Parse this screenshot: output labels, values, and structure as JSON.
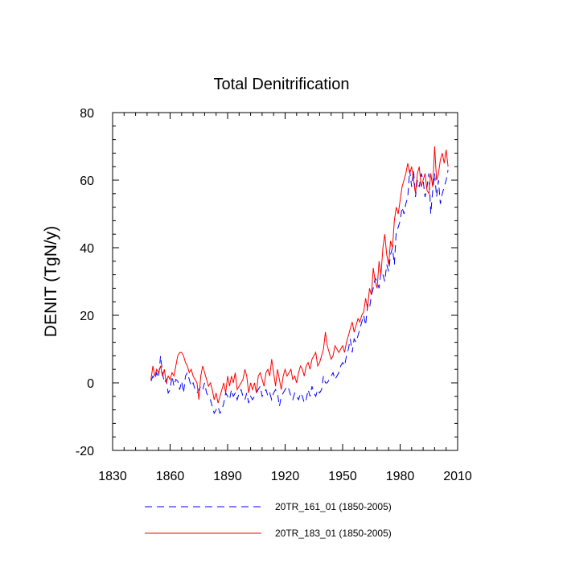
{
  "chart_data": {
    "type": "line",
    "title": "Total Denitrification",
    "xlabel": "",
    "ylabel": "DENIT  (TgN/y)",
    "xlim": [
      1830,
      2010
    ],
    "ylim": [
      -20,
      80
    ],
    "xticks": [
      1830,
      1860,
      1890,
      1920,
      1950,
      1980,
      2010
    ],
    "yticks": [
      -20,
      0,
      20,
      40,
      60,
      80
    ],
    "grid": false,
    "legend_position": "bottom",
    "series": [
      {
        "name": "20TR_161_01 (1850-2005)",
        "color": "#0000ff",
        "style": "dashed",
        "x": [
          1850,
          1851,
          1852,
          1853,
          1854,
          1855,
          1856,
          1857,
          1858,
          1859,
          1860,
          1861,
          1862,
          1863,
          1864,
          1865,
          1866,
          1867,
          1868,
          1869,
          1870,
          1871,
          1872,
          1873,
          1874,
          1875,
          1876,
          1877,
          1878,
          1879,
          1880,
          1881,
          1882,
          1883,
          1884,
          1885,
          1886,
          1887,
          1888,
          1889,
          1890,
          1891,
          1892,
          1893,
          1894,
          1895,
          1896,
          1897,
          1898,
          1899,
          1900,
          1901,
          1902,
          1903,
          1904,
          1905,
          1906,
          1907,
          1908,
          1909,
          1910,
          1911,
          1912,
          1913,
          1914,
          1915,
          1916,
          1917,
          1918,
          1919,
          1920,
          1921,
          1922,
          1923,
          1924,
          1925,
          1926,
          1927,
          1928,
          1929,
          1930,
          1931,
          1932,
          1933,
          1934,
          1935,
          1936,
          1937,
          1938,
          1939,
          1940,
          1941,
          1942,
          1943,
          1944,
          1945,
          1946,
          1947,
          1948,
          1949,
          1950,
          1951,
          1952,
          1953,
          1954,
          1955,
          1956,
          1957,
          1958,
          1959,
          1960,
          1961,
          1962,
          1963,
          1964,
          1965,
          1966,
          1967,
          1968,
          1969,
          1970,
          1971,
          1972,
          1973,
          1974,
          1975,
          1976,
          1977,
          1978,
          1979,
          1980,
          1981,
          1982,
          1983,
          1984,
          1985,
          1986,
          1987,
          1988,
          1989,
          1990,
          1991,
          1992,
          1993,
          1994,
          1995,
          1996,
          1997,
          1998,
          1999,
          2000,
          2001,
          2002,
          2003,
          2004,
          2005
        ],
        "values": [
          0.5,
          2,
          1,
          3,
          1.5,
          8,
          3,
          0,
          1,
          -3,
          -2,
          2,
          -1,
          1,
          0.5,
          -2,
          0.5,
          -3,
          2,
          3,
          1,
          -1,
          0,
          -2,
          -3,
          -2,
          -1,
          -2,
          0,
          -3,
          -4,
          -5,
          -7,
          -9,
          -8,
          -7,
          -9,
          -8,
          -6,
          -3,
          -4,
          -5,
          -2,
          -4,
          -3,
          -5,
          -3,
          -2,
          -4,
          -5,
          -3,
          -6,
          -4,
          -5,
          -4,
          -3,
          -2,
          -1,
          -4,
          -3,
          -2,
          -4,
          -3,
          -5,
          -3,
          -2,
          -3,
          -7,
          -4,
          -3,
          -2,
          -1,
          -2,
          -4,
          -5,
          -3,
          -4,
          -5,
          -3,
          -4,
          -6,
          -5,
          -2,
          -4,
          -1,
          -3,
          -4,
          -2,
          -3,
          -2,
          2,
          0,
          0,
          1,
          2,
          3,
          1,
          2,
          3,
          5,
          6,
          5,
          8,
          10,
          13,
          9,
          13,
          12,
          14,
          16,
          18,
          20,
          17,
          23,
          22,
          26,
          28,
          31,
          30,
          28,
          33,
          32,
          30,
          35,
          33,
          38,
          40,
          35,
          45,
          46,
          48,
          52,
          50,
          53,
          55,
          63,
          58,
          63,
          55,
          60,
          58,
          62,
          60,
          55,
          58,
          62,
          50,
          57,
          62,
          55,
          60,
          53,
          56,
          58,
          60,
          63
        ]
      },
      {
        "name": "20TR_183_01 (1850-2005)",
        "color": "#ff0000",
        "style": "solid",
        "x": [
          1850,
          1851,
          1852,
          1853,
          1854,
          1855,
          1856,
          1857,
          1858,
          1859,
          1860,
          1861,
          1862,
          1863,
          1864,
          1865,
          1866,
          1867,
          1868,
          1869,
          1870,
          1871,
          1872,
          1873,
          1874,
          1875,
          1876,
          1877,
          1878,
          1879,
          1880,
          1881,
          1882,
          1883,
          1884,
          1885,
          1886,
          1887,
          1888,
          1889,
          1890,
          1891,
          1892,
          1893,
          1894,
          1895,
          1896,
          1897,
          1898,
          1899,
          1900,
          1901,
          1902,
          1903,
          1904,
          1905,
          1906,
          1907,
          1908,
          1909,
          1910,
          1911,
          1912,
          1913,
          1914,
          1915,
          1916,
          1917,
          1918,
          1919,
          1920,
          1921,
          1922,
          1923,
          1924,
          1925,
          1926,
          1927,
          1928,
          1929,
          1930,
          1931,
          1932,
          1933,
          1934,
          1935,
          1936,
          1937,
          1938,
          1939,
          1940,
          1941,
          1942,
          1943,
          1944,
          1945,
          1946,
          1947,
          1948,
          1949,
          1950,
          1951,
          1952,
          1953,
          1954,
          1955,
          1956,
          1957,
          1958,
          1959,
          1960,
          1961,
          1962,
          1963,
          1964,
          1965,
          1966,
          1967,
          1968,
          1969,
          1970,
          1971,
          1972,
          1973,
          1974,
          1975,
          1976,
          1977,
          1978,
          1979,
          1980,
          1981,
          1982,
          1983,
          1984,
          1985,
          1986,
          1987,
          1988,
          1989,
          1990,
          1991,
          1992,
          1993,
          1994,
          1995,
          1996,
          1997,
          1998,
          1999,
          2000,
          2001,
          2002,
          2003,
          2004,
          2005
        ],
        "values": [
          1,
          5,
          2,
          4,
          3,
          5,
          2,
          4,
          0,
          2,
          1,
          3,
          2,
          5,
          8,
          9,
          9,
          8,
          6,
          5,
          3,
          4,
          2,
          1,
          0,
          -5,
          2,
          5,
          3,
          1,
          -1,
          0,
          -2,
          -5,
          -3,
          -6,
          -4,
          -2,
          0,
          -3,
          2,
          -1,
          2,
          0,
          3,
          -2,
          -1,
          0,
          1,
          4,
          2,
          -3,
          0,
          -2,
          0,
          -3,
          2,
          3,
          1,
          -1,
          3,
          4,
          2,
          7,
          3,
          -1,
          4,
          1,
          -2,
          2,
          4,
          2,
          3,
          4,
          1,
          2,
          0,
          3,
          5,
          4,
          2,
          5,
          6,
          4,
          7,
          8,
          9,
          5,
          6,
          8,
          10,
          15,
          11,
          9,
          7,
          8,
          11,
          10,
          9,
          10,
          11,
          9,
          12,
          14,
          16,
          18,
          15,
          17,
          19,
          18,
          20,
          21,
          25,
          22,
          28,
          26,
          34,
          30,
          28,
          36,
          32,
          40,
          44,
          38,
          35,
          42,
          40,
          48,
          52,
          50,
          54,
          58,
          60,
          62,
          65,
          62,
          64,
          60,
          56,
          62,
          64,
          58,
          60,
          62,
          57,
          56,
          62,
          58,
          70,
          60,
          62,
          66,
          68,
          65,
          69,
          64
        ]
      }
    ]
  }
}
